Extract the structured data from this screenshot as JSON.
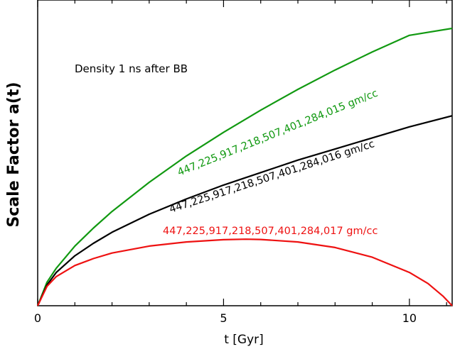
{
  "chart_data": {
    "type": "line",
    "title": "",
    "xlabel": "t [Gyr]",
    "ylabel": "Scale Factor a(t)",
    "annotation": "Density 1 ns after BB",
    "xlim": [
      0,
      11.15
    ],
    "ylim": [
      0,
      1.0
    ],
    "xticks": [
      0,
      5,
      10
    ],
    "yticks": [],
    "grid": false,
    "series": [
      {
        "name": "447,225,917,218,507,401,284,015 gm/cc",
        "color": "#119911",
        "x": [
          0,
          0.25,
          0.5,
          1,
          1.5,
          2,
          3,
          4,
          5,
          6,
          7,
          8,
          9,
          10,
          11.15
        ],
        "y": [
          0,
          0.085,
          0.135,
          0.215,
          0.28,
          0.34,
          0.445,
          0.54,
          0.625,
          0.705,
          0.78,
          0.85,
          0.915,
          0.975,
          1.0
        ]
      },
      {
        "name": "447,225,917,218,507,401,284,016 gm/cc",
        "color": "#000000",
        "x": [
          0,
          0.25,
          0.5,
          1,
          1.5,
          2,
          3,
          4,
          5,
          6,
          7,
          8,
          9,
          10,
          11.15
        ],
        "y": [
          0,
          0.075,
          0.12,
          0.18,
          0.225,
          0.265,
          0.33,
          0.385,
          0.435,
          0.48,
          0.525,
          0.565,
          0.605,
          0.645,
          0.685
        ]
      },
      {
        "name": "447,225,917,218,507,401,284,017 gm/cc",
        "color": "#ee1111",
        "x": [
          0,
          0.25,
          0.5,
          1,
          1.5,
          2,
          3,
          4,
          5,
          5.6,
          6,
          7,
          8,
          9,
          10,
          10.5,
          10.9,
          11.15
        ],
        "y": [
          0,
          0.07,
          0.105,
          0.145,
          0.17,
          0.19,
          0.215,
          0.23,
          0.238,
          0.24,
          0.239,
          0.23,
          0.21,
          0.175,
          0.12,
          0.08,
          0.035,
          0.0
        ]
      }
    ]
  }
}
